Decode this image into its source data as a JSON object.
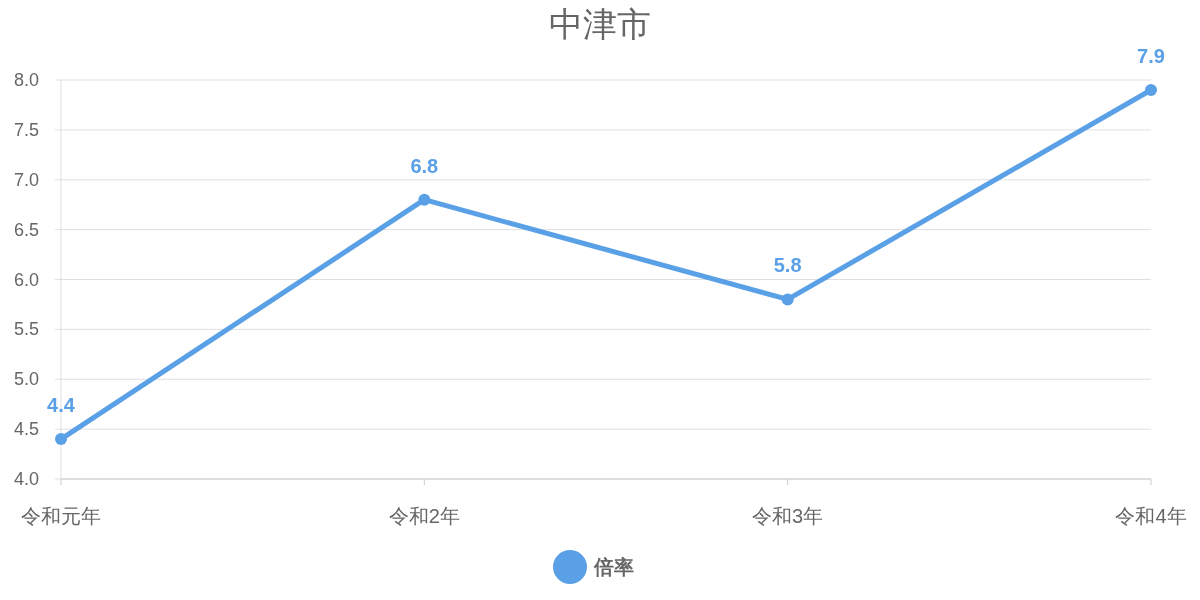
{
  "chart_data": {
    "type": "line",
    "title": "中津市",
    "categories": [
      "令和元年",
      "令和2年",
      "令和3年",
      "令和4年"
    ],
    "series": [
      {
        "name": "倍率",
        "color": "#5aa0e6",
        "values": [
          4.4,
          6.8,
          5.8,
          7.9
        ]
      }
    ],
    "ylim": [
      4,
      8
    ],
    "yticks": [
      {
        "value": 4,
        "label": "4.0"
      },
      {
        "value": 4.5,
        "label": "4.5"
      },
      {
        "value": 5,
        "label": "5.0"
      },
      {
        "value": 5.5,
        "label": "5.5"
      },
      {
        "value": 6,
        "label": "6.0"
      },
      {
        "value": 6.5,
        "label": "6.5"
      },
      {
        "value": 7,
        "label": "7.0"
      },
      {
        "value": 7.5,
        "label": "7.5"
      },
      {
        "value": 8,
        "label": "8.0"
      }
    ],
    "grid": "y",
    "legend": "bottom",
    "marker": "circle",
    "line_style": "solid",
    "data_labels": true
  }
}
